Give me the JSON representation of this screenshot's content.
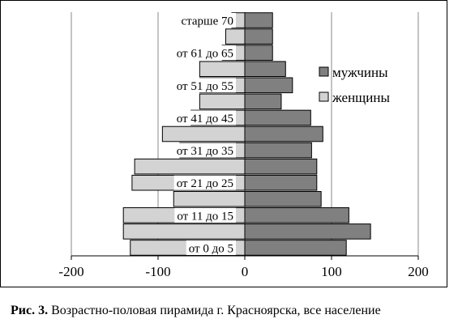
{
  "chart_data": {
    "type": "bar",
    "orientation": "horizontal",
    "layout": "population-pyramid",
    "categories": [
      "от 0 до 5",
      "",
      "от 11 до 15",
      "",
      "от 21 до 25",
      "",
      "от 31 до 35",
      "",
      "от 41 до 45",
      "",
      "от 51 до 55",
      "",
      "от 61 до 65",
      "",
      "старше 70"
    ],
    "series": [
      {
        "name": "мужчины",
        "color": "#808080",
        "values": [
          117,
          145,
          120,
          88,
          83,
          83,
          77,
          90,
          76,
          42,
          55,
          47,
          32,
          32,
          32
        ]
      },
      {
        "name": "женщины",
        "color": "#d3d3d3",
        "values": [
          -132,
          -140,
          -140,
          -82,
          -130,
          -127,
          -75,
          -95,
          -62,
          -52,
          -52,
          -52,
          -26,
          -22,
          -15
        ]
      }
    ],
    "xlim": [
      -200,
      200
    ],
    "xticks": [
      "-200",
      "-100",
      "0",
      "100",
      "200"
    ],
    "gridlines": "vertical",
    "legend_position": "right"
  },
  "caption": {
    "label": "Рис. 3.",
    "text": " Возрастно-половая пирамида г. Красноярска, все население"
  }
}
